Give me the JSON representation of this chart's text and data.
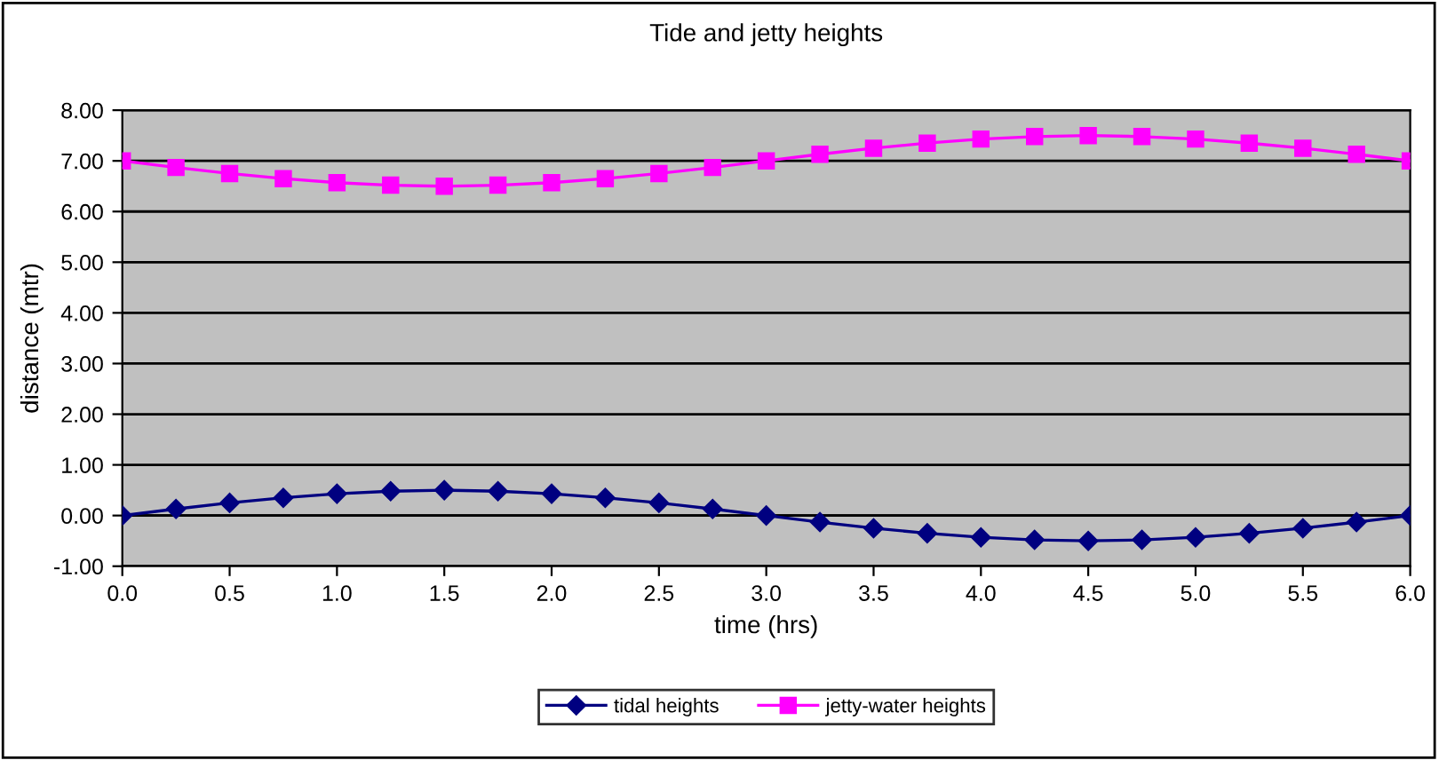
{
  "chart_data": {
    "type": "line",
    "title": "Tide and jetty heights",
    "xlabel": "time (hrs)",
    "ylabel": "distance (mtr)",
    "x": [
      0,
      0.25,
      0.5,
      0.75,
      1.0,
      1.25,
      1.5,
      1.75,
      2.0,
      2.25,
      2.5,
      2.75,
      3.0,
      3.25,
      3.5,
      3.75,
      4.0,
      4.25,
      4.5,
      4.75,
      5.0,
      5.25,
      5.5,
      5.75,
      6.0
    ],
    "series": [
      {
        "name": "tidal heights",
        "color": "#000080",
        "marker": "diamond",
        "values": [
          0,
          0.13,
          0.25,
          0.35,
          0.43,
          0.48,
          0.5,
          0.48,
          0.43,
          0.35,
          0.25,
          0.13,
          0,
          -0.13,
          -0.25,
          -0.35,
          -0.43,
          -0.48,
          -0.5,
          -0.48,
          -0.43,
          -0.35,
          -0.25,
          -0.13,
          0
        ]
      },
      {
        "name": "jetty-water heights",
        "color": "#ff00ff",
        "marker": "square",
        "values": [
          7.0,
          6.87,
          6.75,
          6.65,
          6.57,
          6.52,
          6.5,
          6.52,
          6.57,
          6.65,
          6.75,
          6.87,
          7.0,
          7.13,
          7.25,
          7.35,
          7.43,
          7.48,
          7.5,
          7.48,
          7.43,
          7.35,
          7.25,
          7.13,
          7.0
        ]
      }
    ],
    "xlim": [
      0,
      6
    ],
    "xticks": [
      {
        "value": 0,
        "label": "0.0"
      },
      {
        "value": 0.5,
        "label": "0.5"
      },
      {
        "value": 1,
        "label": "1.0"
      },
      {
        "value": 1.5,
        "label": "1.5"
      },
      {
        "value": 2,
        "label": "2.0"
      },
      {
        "value": 2.5,
        "label": "2.5"
      },
      {
        "value": 3,
        "label": "3.0"
      },
      {
        "value": 3.5,
        "label": "3.5"
      },
      {
        "value": 4,
        "label": "4.0"
      },
      {
        "value": 4.5,
        "label": "4.5"
      },
      {
        "value": 5,
        "label": "5.0"
      },
      {
        "value": 5.5,
        "label": "5.5"
      },
      {
        "value": 6,
        "label": "6.0"
      }
    ],
    "ylim": [
      -1,
      8
    ],
    "yticks": [
      {
        "value": -1,
        "label": "-1.00"
      },
      {
        "value": 0,
        "label": "0.00"
      },
      {
        "value": 1,
        "label": "1.00"
      },
      {
        "value": 2,
        "label": "2.00"
      },
      {
        "value": 3,
        "label": "3.00"
      },
      {
        "value": 4,
        "label": "4.00"
      },
      {
        "value": 5,
        "label": "5.00"
      },
      {
        "value": 6,
        "label": "6.00"
      },
      {
        "value": 7,
        "label": "7.00"
      },
      {
        "value": 8,
        "label": "8.00"
      }
    ],
    "grid": "y",
    "legend": "bottom",
    "line_style": "solid"
  }
}
